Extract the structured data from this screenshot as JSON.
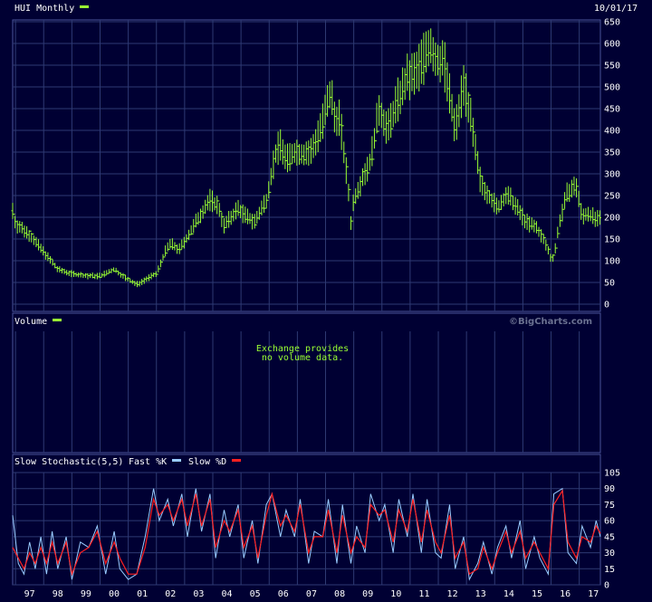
{
  "colors": {
    "background": "#000033",
    "grid": "#2e3a73",
    "border": "#4a5599",
    "price_bar": "#99ff33",
    "fast_k": "#99ccff",
    "slow_d": "#ff2020"
  },
  "header": {
    "date": "10/01/17",
    "watermark": "©BigCharts.com"
  },
  "chart_data": [
    {
      "type": "line",
      "title": "HUI Monthly",
      "legend_color": "#99ff33",
      "ylim": [
        0,
        650
      ],
      "yticks": [
        0,
        50,
        100,
        150,
        200,
        250,
        300,
        350,
        400,
        450,
        500,
        550,
        600,
        650
      ],
      "x_start": 1996.9,
      "x_end": 2017.75,
      "series": [
        {
          "x": [
            1996.9,
            1997.0,
            1997.5,
            1998.0,
            1998.5,
            1999.0,
            1999.5,
            2000.0,
            2000.5,
            2000.9,
            2001.3,
            2001.7,
            2002.0,
            2002.3,
            2002.5,
            2002.8,
            2003.2,
            2003.5,
            2003.9,
            2004.2,
            2004.4,
            2004.9,
            2005.2,
            2005.5,
            2005.9,
            2006.2,
            2006.4,
            2006.6,
            2006.9,
            2007.2,
            2007.5,
            2007.9,
            2008.2,
            2008.3,
            2008.5,
            2008.8,
            2008.9,
            2009.0,
            2009.3,
            2009.6,
            2009.9,
            2010.2,
            2010.5,
            2010.9,
            2011.2,
            2011.5,
            2011.7,
            2011.9,
            2012.2,
            2012.5,
            2012.6,
            2012.9,
            2013.1,
            2013.3,
            2013.5,
            2013.8,
            2014.1,
            2014.4,
            2014.6,
            2014.9,
            2015.1,
            2015.5,
            2015.8,
            2016.0,
            2016.1,
            2016.3,
            2016.6,
            2016.9,
            2017.1,
            2017.3,
            2017.6,
            2017.75
          ],
          "y": [
            215,
            185,
            160,
            120,
            80,
            70,
            65,
            65,
            80,
            60,
            45,
            60,
            70,
            120,
            140,
            125,
            165,
            200,
            240,
            225,
            180,
            220,
            200,
            190,
            240,
            340,
            370,
            330,
            350,
            345,
            350,
            420,
            490,
            430,
            430,
            270,
            190,
            240,
            290,
            330,
            450,
            400,
            460,
            520,
            530,
            570,
            600,
            560,
            560,
            440,
            400,
            510,
            450,
            360,
            280,
            250,
            220,
            250,
            240,
            210,
            190,
            175,
            140,
            105,
            110,
            190,
            260,
            270,
            200,
            210,
            195,
            195
          ]
        }
      ]
    },
    {
      "type": "table",
      "title": "Volume",
      "legend_color": "#99ff33",
      "note_line1": "Exchange provides",
      "note_line2": "no volume data."
    },
    {
      "type": "line",
      "title": "Slow Stochastic(5,5)",
      "fast_label": "Fast %K",
      "slow_label": "Slow %D",
      "ylim": [
        0,
        105
      ],
      "yticks": [
        0,
        15,
        30,
        45,
        60,
        75,
        90,
        105
      ],
      "x_categories": [
        "97",
        "98",
        "99",
        "00",
        "01",
        "02",
        "03",
        "04",
        "05",
        "06",
        "07",
        "08",
        "09",
        "10",
        "11",
        "12",
        "13",
        "14",
        "15",
        "16",
        "17"
      ],
      "series": [
        {
          "name": "Fast %K",
          "x": [
            1996.9,
            1997.1,
            1997.3,
            1997.5,
            1997.7,
            1997.9,
            1998.1,
            1998.3,
            1998.5,
            1998.8,
            1999.0,
            1999.3,
            1999.6,
            1999.9,
            2000.2,
            2000.5,
            2000.7,
            2001.0,
            2001.3,
            2001.6,
            2001.9,
            2002.1,
            2002.4,
            2002.6,
            2002.9,
            2003.1,
            2003.4,
            2003.6,
            2003.9,
            2004.1,
            2004.4,
            2004.6,
            2004.9,
            2005.1,
            2005.4,
            2005.6,
            2005.9,
            2006.1,
            2006.4,
            2006.6,
            2006.9,
            2007.1,
            2007.4,
            2007.6,
            2007.9,
            2008.1,
            2008.4,
            2008.6,
            2008.9,
            2009.1,
            2009.4,
            2009.6,
            2009.9,
            2010.1,
            2010.4,
            2010.6,
            2010.9,
            2011.1,
            2011.4,
            2011.6,
            2011.9,
            2012.1,
            2012.4,
            2012.6,
            2012.9,
            2013.1,
            2013.4,
            2013.6,
            2013.9,
            2014.1,
            2014.4,
            2014.6,
            2014.9,
            2015.1,
            2015.4,
            2015.6,
            2015.9,
            2016.1,
            2016.4,
            2016.6,
            2016.9,
            2017.1,
            2017.4,
            2017.6,
            2017.75
          ],
          "y": [
            65,
            20,
            10,
            40,
            15,
            45,
            10,
            50,
            15,
            45,
            5,
            40,
            35,
            55,
            10,
            50,
            15,
            5,
            10,
            45,
            90,
            60,
            80,
            55,
            85,
            45,
            90,
            50,
            85,
            25,
            70,
            45,
            75,
            25,
            60,
            20,
            75,
            85,
            45,
            70,
            45,
            80,
            20,
            50,
            45,
            80,
            20,
            75,
            20,
            55,
            30,
            85,
            60,
            75,
            30,
            80,
            45,
            85,
            30,
            80,
            30,
            25,
            75,
            15,
            45,
            5,
            20,
            40,
            10,
            35,
            55,
            25,
            60,
            15,
            45,
            25,
            10,
            85,
            90,
            30,
            20,
            55,
            35,
            60,
            45
          ]
        },
        {
          "name": "Slow %D",
          "x": [
            1996.9,
            1997.1,
            1997.3,
            1997.5,
            1997.7,
            1997.9,
            1998.1,
            1998.3,
            1998.5,
            1998.8,
            1999.0,
            1999.3,
            1999.6,
            1999.9,
            2000.2,
            2000.5,
            2000.7,
            2001.0,
            2001.3,
            2001.6,
            2001.9,
            2002.1,
            2002.4,
            2002.6,
            2002.9,
            2003.1,
            2003.4,
            2003.6,
            2003.9,
            2004.1,
            2004.4,
            2004.6,
            2004.9,
            2005.1,
            2005.4,
            2005.6,
            2005.9,
            2006.1,
            2006.4,
            2006.6,
            2006.9,
            2007.1,
            2007.4,
            2007.6,
            2007.9,
            2008.1,
            2008.4,
            2008.6,
            2008.9,
            2009.1,
            2009.4,
            2009.6,
            2009.9,
            2010.1,
            2010.4,
            2010.6,
            2010.9,
            2011.1,
            2011.4,
            2011.6,
            2011.9,
            2012.1,
            2012.4,
            2012.6,
            2012.9,
            2013.1,
            2013.4,
            2013.6,
            2013.9,
            2014.1,
            2014.4,
            2014.6,
            2014.9,
            2015.1,
            2015.4,
            2015.6,
            2015.9,
            2016.1,
            2016.4,
            2016.6,
            2016.9,
            2017.1,
            2017.4,
            2017.6,
            2017.75
          ],
          "y": [
            35,
            25,
            15,
            30,
            20,
            35,
            20,
            40,
            20,
            40,
            10,
            30,
            35,
            50,
            20,
            40,
            25,
            10,
            10,
            35,
            80,
            65,
            75,
            60,
            80,
            55,
            85,
            55,
            80,
            35,
            60,
            50,
            70,
            35,
            55,
            25,
            65,
            85,
            55,
            65,
            50,
            75,
            30,
            45,
            45,
            70,
            30,
            65,
            30,
            45,
            35,
            75,
            65,
            70,
            40,
            70,
            50,
            80,
            40,
            70,
            40,
            30,
            65,
            25,
            40,
            10,
            15,
            35,
            15,
            30,
            50,
            30,
            50,
            25,
            40,
            30,
            15,
            75,
            88,
            40,
            25,
            45,
            40,
            55,
            48
          ]
        }
      ]
    }
  ]
}
